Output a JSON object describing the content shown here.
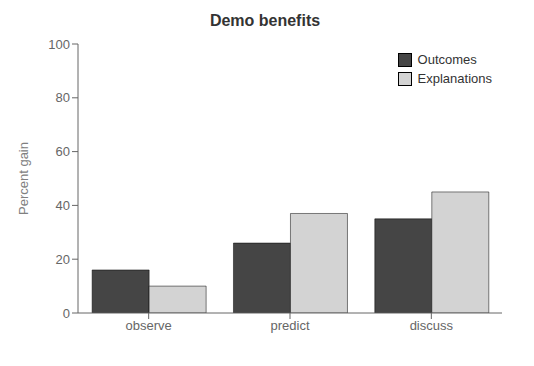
{
  "chart_data": {
    "type": "bar",
    "title": "Demo benefits",
    "ylabel": "Percent gain",
    "categories": [
      "observe",
      "predict",
      "discuss"
    ],
    "series": [
      {
        "name": "Outcomes",
        "color": "#454545",
        "values": [
          16,
          26,
          35
        ]
      },
      {
        "name": "Explanations",
        "color": "#d3d3d3",
        "values": [
          10,
          37,
          45
        ]
      }
    ],
    "ylim": [
      0,
      100
    ],
    "yticks": [
      0,
      20,
      40,
      60,
      80,
      100
    ],
    "grid": false,
    "legend": "upper right"
  }
}
